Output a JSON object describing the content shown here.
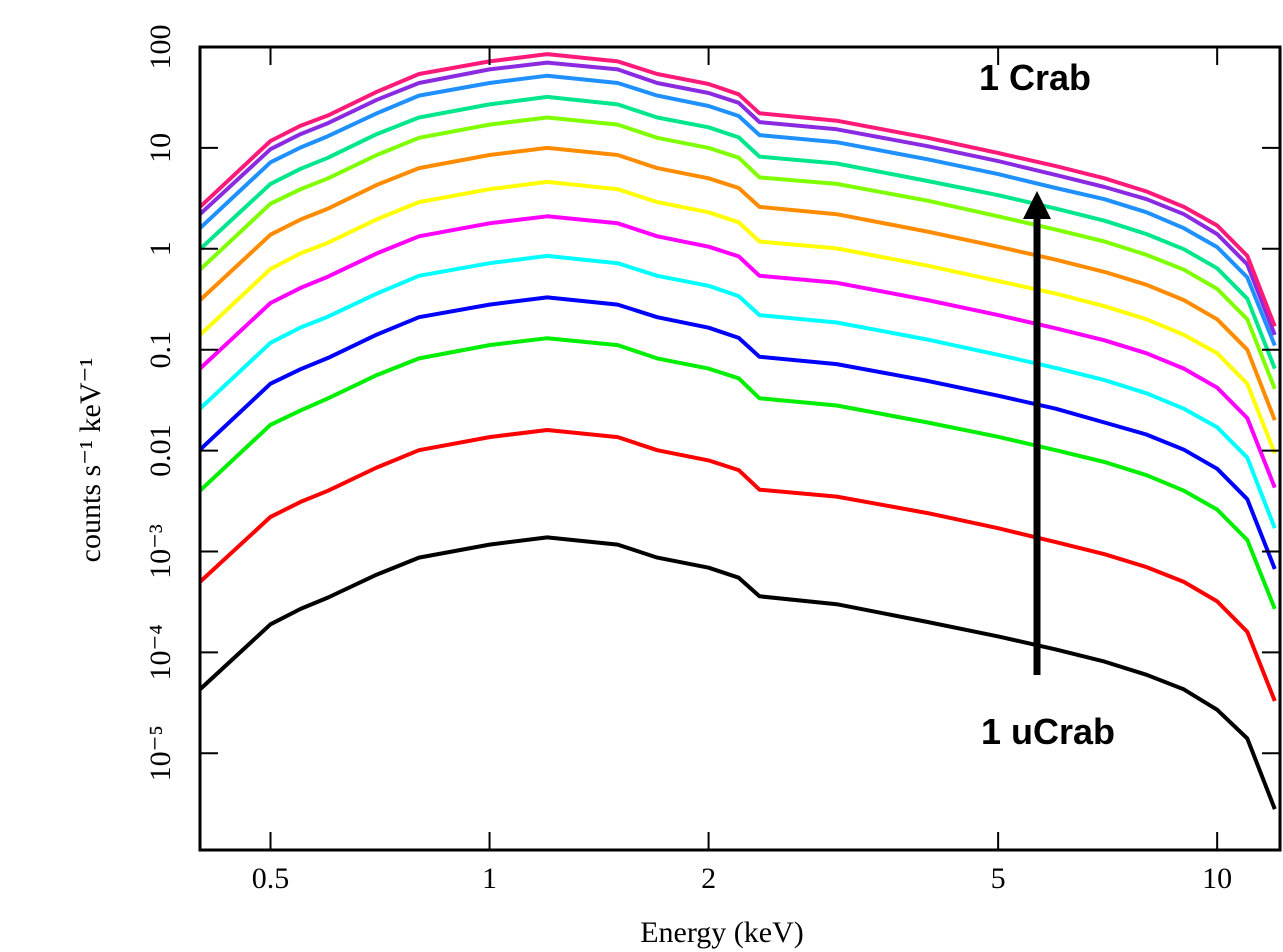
{
  "chart_data": {
    "type": "line",
    "xlabel": "Energy (keV)",
    "ylabel": "counts s⁻¹ keV⁻¹",
    "xscale": "log",
    "yscale": "log",
    "xlim": [
      0.4,
      12.2
    ],
    "ylim": [
      1.1e-06,
      100
    ],
    "xticks": [
      0.5,
      1,
      2,
      5,
      10
    ],
    "yticks": [
      {
        "value": 1e-05,
        "label": "10⁻⁵"
      },
      {
        "value": 0.0001,
        "label": "10⁻⁴"
      },
      {
        "value": 0.001,
        "label": "10⁻³"
      },
      0.01,
      0.1,
      1,
      10,
      100
    ],
    "annotations": [
      "1 Crab",
      "1 uCrab"
    ],
    "x": [
      0.4,
      0.5,
      0.55,
      0.6,
      0.7,
      0.8,
      1,
      1.2,
      1.5,
      1.7,
      2,
      2.2,
      2.35,
      3,
      4,
      5,
      6,
      7,
      8,
      9,
      10,
      11,
      12
    ],
    "series": [
      {
        "color": "#000000",
        "values": [
          4.3e-05,
          0.00019,
          0.00027,
          0.00035,
          0.00059,
          0.00087,
          0.00117,
          0.00138,
          0.00117,
          0.00087,
          0.00069,
          0.00055,
          0.00036,
          0.0003,
          0.0002,
          0.000144,
          0.000107,
          8.1e-05,
          6e-05,
          4.3e-05,
          2.7e-05,
          1.4e-05,
          2.8e-06
        ]
      },
      {
        "color": "#ff0000",
        "values": [
          0.0005,
          0.0022,
          0.0031,
          0.004,
          0.0068,
          0.0101,
          0.0136,
          0.016,
          0.0136,
          0.0101,
          0.008,
          0.0064,
          0.0041,
          0.0035,
          0.0024,
          0.0017,
          0.00124,
          0.00094,
          0.0007,
          0.0005,
          0.00032,
          0.00016,
          3.3e-05
        ]
      },
      {
        "color": "#00ee00",
        "values": [
          0.004,
          0.018,
          0.025,
          0.033,
          0.056,
          0.082,
          0.111,
          0.13,
          0.111,
          0.082,
          0.065,
          0.052,
          0.033,
          0.028,
          0.019,
          0.0137,
          0.0101,
          0.0077,
          0.0057,
          0.004,
          0.0026,
          0.0013,
          0.00027
        ]
      },
      {
        "color": "#0000ff",
        "values": [
          0.0102,
          0.046,
          0.064,
          0.083,
          0.141,
          0.21,
          0.28,
          0.33,
          0.28,
          0.21,
          0.165,
          0.131,
          0.085,
          0.072,
          0.049,
          0.035,
          0.026,
          0.019,
          0.0144,
          0.0102,
          0.0066,
          0.0033,
          0.00067
        ]
      },
      {
        "color": "#00ffff",
        "values": [
          0.026,
          0.117,
          0.166,
          0.213,
          0.36,
          0.54,
          0.72,
          0.85,
          0.72,
          0.54,
          0.43,
          0.34,
          0.22,
          0.186,
          0.126,
          0.089,
          0.066,
          0.05,
          0.037,
          0.026,
          0.017,
          0.0085,
          0.0017
        ]
      },
      {
        "color": "#ff00ff",
        "values": [
          0.065,
          0.29,
          0.41,
          0.53,
          0.9,
          1.33,
          1.79,
          2.1,
          1.79,
          1.33,
          1.05,
          0.84,
          0.54,
          0.46,
          0.31,
          0.22,
          0.163,
          0.124,
          0.092,
          0.065,
          0.042,
          0.021,
          0.0043
        ]
      },
      {
        "color": "#ffff00",
        "values": [
          0.14,
          0.63,
          0.9,
          1.15,
          1.96,
          2.9,
          3.9,
          4.6,
          3.9,
          2.9,
          2.3,
          1.83,
          1.18,
          1.01,
          0.68,
          0.48,
          0.36,
          0.27,
          0.2,
          0.14,
          0.092,
          0.046,
          0.0094
        ]
      },
      {
        "color": "#ff8c00",
        "values": [
          0.31,
          1.38,
          1.95,
          2.5,
          4.3,
          6.3,
          8.5,
          10,
          8.5,
          6.3,
          5.0,
          4.0,
          2.6,
          2.2,
          1.48,
          1.05,
          0.78,
          0.59,
          0.44,
          0.31,
          0.2,
          0.1,
          0.02
        ]
      },
      {
        "color": "#7fff00",
        "values": [
          0.62,
          2.8,
          3.9,
          5.0,
          8.5,
          12.6,
          17,
          20,
          17,
          12.6,
          10,
          8.0,
          5.1,
          4.4,
          3.0,
          2.1,
          1.55,
          1.18,
          0.87,
          0.62,
          0.4,
          0.2,
          0.041
        ]
      },
      {
        "color": "#00e68c",
        "values": [
          0.99,
          4.4,
          6.2,
          8.0,
          13.7,
          20,
          27,
          32,
          27,
          20,
          16,
          12.7,
          8.2,
          7.0,
          4.7,
          3.4,
          2.5,
          1.9,
          1.4,
          0.99,
          0.64,
          0.32,
          0.065
        ]
      },
      {
        "color": "#1e90ff",
        "values": [
          1.6,
          7.2,
          10.1,
          13.1,
          22,
          33,
          44,
          52,
          44,
          33,
          26,
          20.7,
          13.4,
          11.4,
          7.7,
          5.5,
          4.0,
          3.1,
          2.3,
          1.6,
          1.04,
          0.52,
          0.11
        ]
      },
      {
        "color": "#8a2be2",
        "values": [
          2.2,
          9.7,
          13.7,
          17.6,
          30,
          44,
          60,
          70,
          60,
          44,
          35,
          28,
          18,
          15.3,
          10.4,
          7.4,
          5.4,
          4.1,
          3.1,
          2.2,
          1.4,
          0.7,
          0.14
        ]
      },
      {
        "color": "#ff1a7a",
        "values": [
          2.6,
          11.7,
          16.6,
          21,
          36,
          54,
          72,
          85,
          72,
          54,
          43,
          34,
          22,
          18.6,
          12.6,
          8.9,
          6.6,
          5.0,
          3.7,
          2.6,
          1.7,
          0.85,
          0.17
        ]
      }
    ]
  }
}
